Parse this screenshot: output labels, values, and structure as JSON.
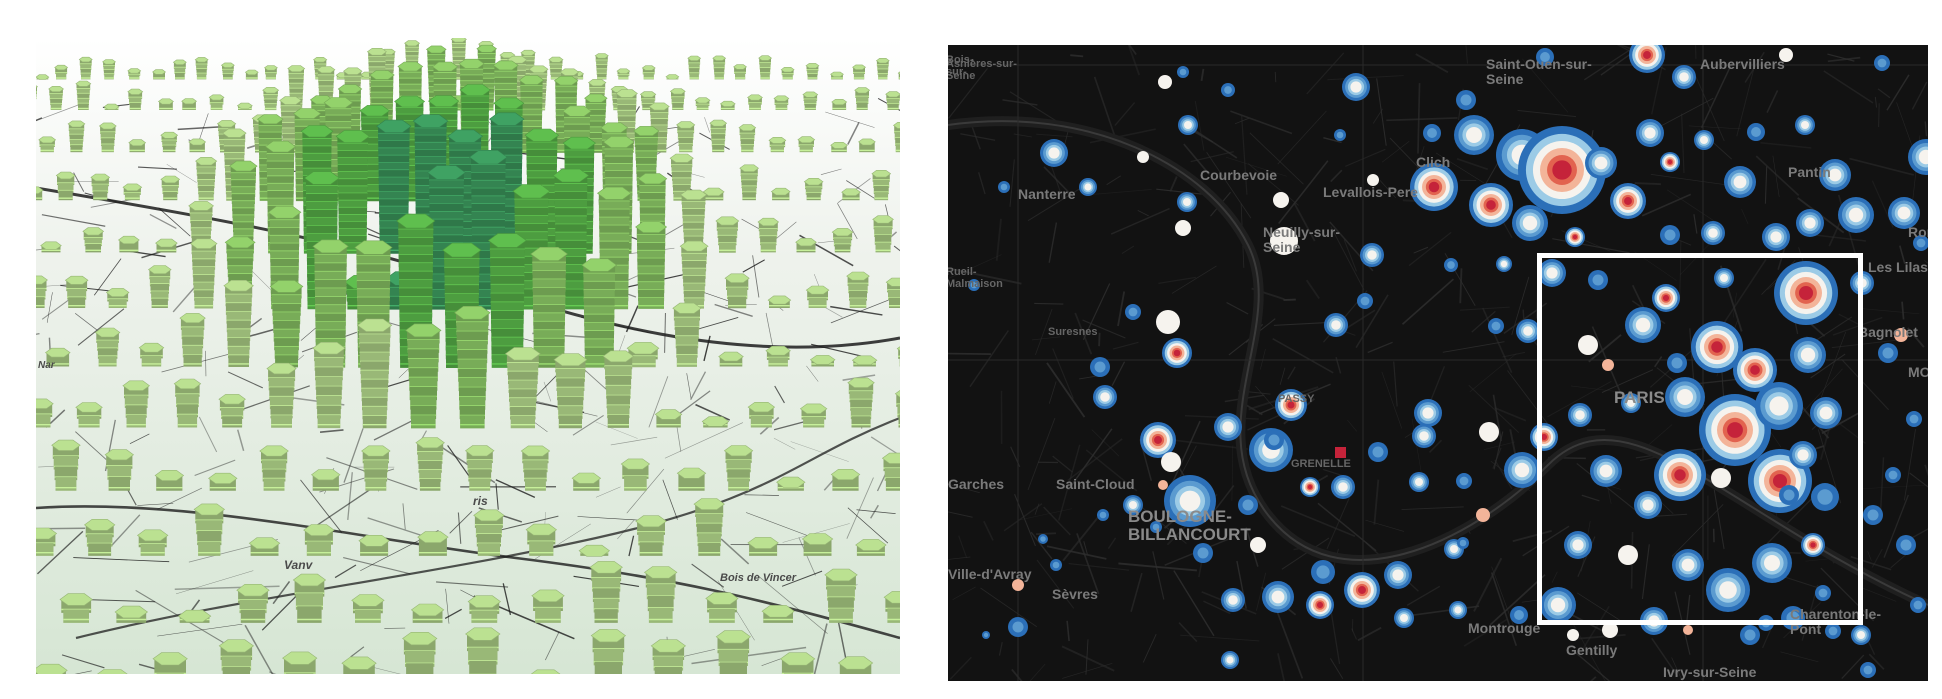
{
  "left_map": {
    "style": "3D hexagonal column extrusion over light street basemap",
    "colors": {
      "column_light": "#b2d68a",
      "column_mid": "#8cc866",
      "column_dark": "#5ab64a",
      "column_highlight": "#3c9a5e",
      "basemap": "#eef3ec",
      "roads": "#1c1c1c"
    },
    "labels": [
      {
        "text": "Vanv"
      },
      {
        "text": "Bois de Vincer"
      },
      {
        "text": "ris"
      },
      {
        "text": "Nar"
      }
    ]
  },
  "right_map": {
    "style": "dark basemap with concentric graduated-circle markers",
    "colors": {
      "background": "#121212",
      "roads": "#2e2e2e",
      "ring_blue": "#2b6fb8",
      "ring_light": "#9ccbe6",
      "ring_white": "#f6f3ee",
      "ring_peach": "#f3b499",
      "core_red": "#c5233a",
      "highlight_box": "#ffffff"
    },
    "labels": [
      {
        "text": "Asnières-sur-\nSeine"
      },
      {
        "text": "Saint-Ouen-sur-\nSeine"
      },
      {
        "text": "Aubervilliers"
      },
      {
        "text": "Courbevoie"
      },
      {
        "text": "Nanterre"
      },
      {
        "text": "Levallois-Pere"
      },
      {
        "text": "Clich"
      },
      {
        "text": "Pantin"
      },
      {
        "text": "Neuilly-sur-\nSeine"
      },
      {
        "text": "Rom"
      },
      {
        "text": "Les Lilas"
      },
      {
        "text": "Rueil-\nMalmaison"
      },
      {
        "text": "Suresnes"
      },
      {
        "text": "Bagnolet"
      },
      {
        "text": "PASSY"
      },
      {
        "text": "PARIS"
      },
      {
        "text": "GRENELLE"
      },
      {
        "text": "Saint-Cloud"
      },
      {
        "text": "Garches"
      },
      {
        "text": "BOULOGNE-\nBILLANCOURT"
      },
      {
        "text": "Ville-d'Avray"
      },
      {
        "text": "Sèvres"
      },
      {
        "text": "Montrouge"
      },
      {
        "text": "Gentilly"
      },
      {
        "text": "Ivry-sur-Seine"
      },
      {
        "text": "Charenton-le-\nPont"
      },
      {
        "text": "Bois-\nsur-"
      },
      {
        "text": "MO"
      }
    ]
  }
}
